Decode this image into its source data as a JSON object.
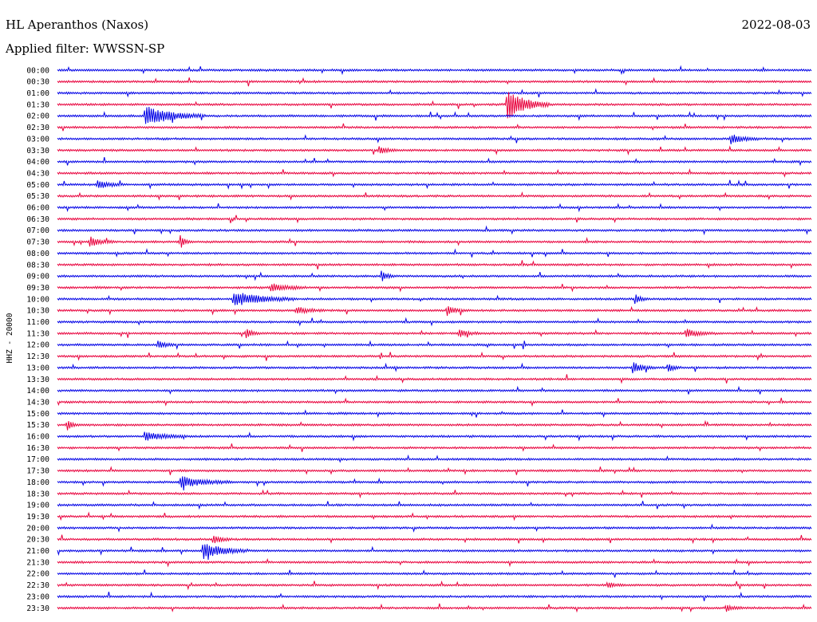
{
  "header": {
    "station": "HL Aperanthos (Naxos)",
    "filter": "Applied filter: WWSSN-SP",
    "date": "2022-08-03"
  },
  "chart_data": {
    "type": "line",
    "ylabel": "HHZ - 20000",
    "row_labels": [
      "00:00",
      "00:30",
      "01:00",
      "01:30",
      "02:00",
      "02:30",
      "03:00",
      "03:30",
      "04:00",
      "04:30",
      "05:00",
      "05:30",
      "06:00",
      "06:30",
      "07:00",
      "07:30",
      "08:00",
      "08:30",
      "09:00",
      "09:30",
      "10:00",
      "10:30",
      "11:00",
      "11:30",
      "12:00",
      "12:30",
      "13:00",
      "13:30",
      "14:00",
      "14:30",
      "15:00",
      "15:30",
      "16:00",
      "16:30",
      "17:00",
      "17:30",
      "18:00",
      "18:30",
      "19:00",
      "19:30",
      "20:00",
      "20:30",
      "21:00",
      "21:30",
      "22:00",
      "22:30",
      "23:00",
      "23:30"
    ],
    "row_minutes": 30,
    "colors": {
      "even": "#0000e6",
      "odd": "#e8003c"
    },
    "events": [
      {
        "row": 3,
        "minute": 17.9,
        "amp": 18,
        "dur": 1.5
      },
      {
        "row": 4,
        "minute": 3.5,
        "amp": 12,
        "dur": 2.2
      },
      {
        "row": 6,
        "minute": 26.8,
        "amp": 6,
        "dur": 0.9
      },
      {
        "row": 7,
        "minute": 12.8,
        "amp": 5,
        "dur": 0.6
      },
      {
        "row": 10,
        "minute": 1.6,
        "amp": 6,
        "dur": 0.8
      },
      {
        "row": 15,
        "minute": 1.3,
        "amp": 6,
        "dur": 0.8
      },
      {
        "row": 15,
        "minute": 4.9,
        "amp": 9,
        "dur": 0.3
      },
      {
        "row": 18,
        "minute": 12.9,
        "amp": 7,
        "dur": 0.4
      },
      {
        "row": 19,
        "minute": 8.5,
        "amp": 6,
        "dur": 1.2
      },
      {
        "row": 20,
        "minute": 7.0,
        "amp": 9,
        "dur": 2.2
      },
      {
        "row": 20,
        "minute": 23.0,
        "amp": 9,
        "dur": 0.3
      },
      {
        "row": 21,
        "minute": 9.5,
        "amp": 4,
        "dur": 1.0
      },
      {
        "row": 21,
        "minute": 15.5,
        "amp": 6,
        "dur": 0.6
      },
      {
        "row": 23,
        "minute": 7.5,
        "amp": 6,
        "dur": 0.5
      },
      {
        "row": 23,
        "minute": 16.0,
        "amp": 5,
        "dur": 0.6
      },
      {
        "row": 23,
        "minute": 25.0,
        "amp": 5,
        "dur": 1.0
      },
      {
        "row": 24,
        "minute": 4.0,
        "amp": 5,
        "dur": 0.6
      },
      {
        "row": 26,
        "minute": 22.9,
        "amp": 7,
        "dur": 0.7
      },
      {
        "row": 26,
        "minute": 24.3,
        "amp": 6,
        "dur": 0.4
      },
      {
        "row": 31,
        "minute": 0.4,
        "amp": 8,
        "dur": 0.3
      },
      {
        "row": 32,
        "minute": 3.5,
        "amp": 5,
        "dur": 1.5
      },
      {
        "row": 36,
        "minute": 4.9,
        "amp": 7,
        "dur": 1.8
      },
      {
        "row": 41,
        "minute": 6.2,
        "amp": 5,
        "dur": 0.6
      },
      {
        "row": 42,
        "minute": 5.8,
        "amp": 10,
        "dur": 1.6
      },
      {
        "row": 45,
        "minute": 21.9,
        "amp": 4,
        "dur": 0.5
      },
      {
        "row": 47,
        "minute": 26.6,
        "amp": 4,
        "dur": 0.5
      }
    ]
  }
}
